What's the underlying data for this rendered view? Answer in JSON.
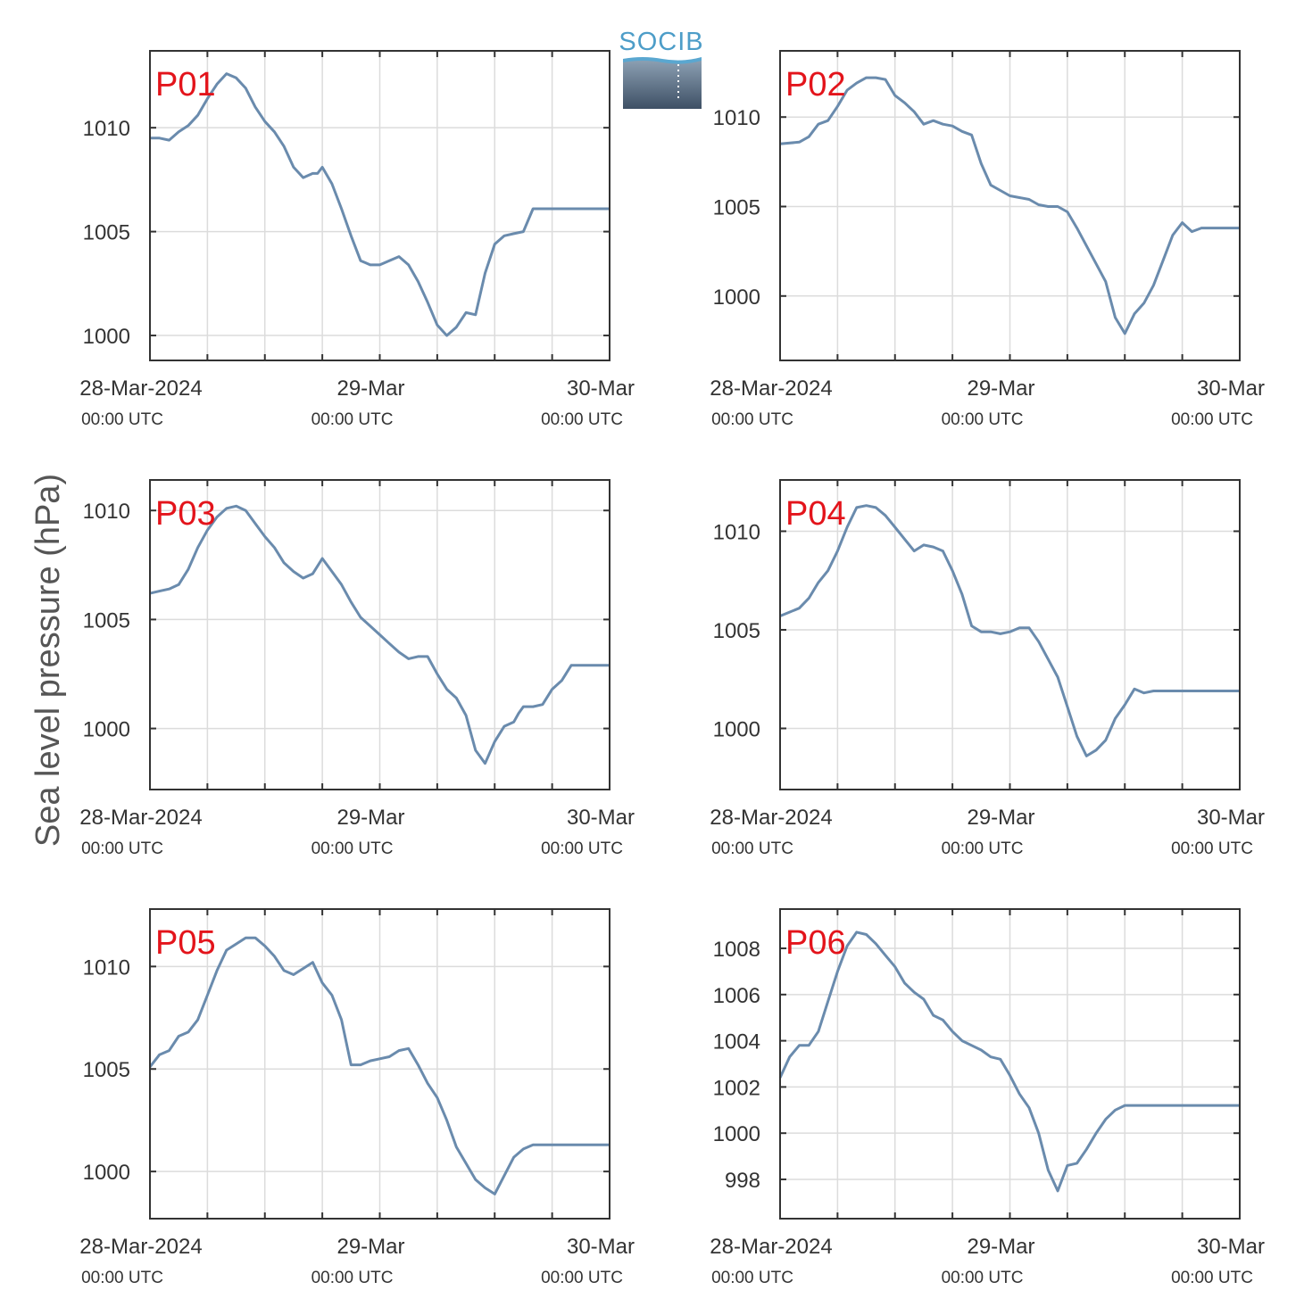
{
  "figure": {
    "ylabel": "Sea level pressure (hPa)",
    "logo_text": "SOCIB",
    "colors": {
      "line": "#6a8bad",
      "panel_label": "#e3141b",
      "grid": "#dcdcdc",
      "axis": "#333333"
    }
  },
  "chart_data": [
    {
      "type": "line",
      "label": "P01",
      "ylim": [
        998.8,
        1013.7
      ],
      "yticks": [
        1000,
        1005,
        1010
      ],
      "xlim": [
        0,
        48
      ],
      "xticks": [
        {
          "x": 0,
          "main": "28-Mar-2024",
          "sub": "00:00 UTC"
        },
        {
          "x": 24,
          "main": "29-Mar",
          "sub": "00:00 UTC"
        },
        {
          "x": 48,
          "main": "30-Mar",
          "sub": "00:00 UTC"
        }
      ],
      "grid": true,
      "x": [
        0,
        1,
        2,
        3,
        4,
        5,
        6,
        7,
        8,
        9,
        10,
        11,
        12,
        13,
        14,
        15,
        16,
        17,
        17.5,
        18,
        19,
        20,
        21,
        22,
        22.5,
        23,
        24,
        25,
        26,
        27,
        28,
        29,
        30,
        31,
        32,
        33,
        34,
        35,
        36,
        37,
        38,
        39,
        40,
        41,
        42,
        43,
        44,
        45,
        46,
        47,
        48
      ],
      "y": [
        1009.5,
        1009.5,
        1009.4,
        1009.8,
        1010.1,
        1010.6,
        1011.4,
        1012.1,
        1012.6,
        1012.4,
        1011.9,
        1011.0,
        1010.3,
        1009.8,
        1009.1,
        1008.1,
        1007.6,
        1007.8,
        1007.8,
        1008.1,
        1007.3,
        1006.1,
        1004.8,
        1003.6,
        1003.5,
        1003.4,
        1003.4,
        1003.6,
        1003.8,
        1003.4,
        1002.6,
        1001.6,
        1000.5,
        1000.0,
        1000.4,
        1001.1,
        1001.0,
        1003.0,
        1004.4,
        1004.8,
        1004.9,
        1005.0,
        1006.1,
        1006.1,
        1006.1,
        1006.1,
        1006.1,
        1006.1,
        1006.1,
        1006.1,
        1006.1
      ]
    },
    {
      "type": "line",
      "label": "P02",
      "ylim": [
        996.4,
        1013.7
      ],
      "yticks": [
        1000,
        1005,
        1010
      ],
      "xlim": [
        0,
        48
      ],
      "xticks": [
        {
          "x": 0,
          "main": "28-Mar-2024",
          "sub": "00:00 UTC"
        },
        {
          "x": 24,
          "main": "29-Mar",
          "sub": "00:00 UTC"
        },
        {
          "x": 48,
          "main": "30-Mar",
          "sub": "00:00 UTC"
        }
      ],
      "grid": true,
      "x": [
        0,
        2,
        3,
        4,
        5,
        6,
        7,
        8,
        9,
        10,
        11,
        12,
        13,
        14,
        15,
        16,
        17,
        18,
        19,
        20,
        21,
        22,
        23,
        24,
        25,
        26,
        27,
        28,
        29,
        30,
        31,
        32,
        33,
        34,
        35,
        36,
        37,
        38,
        39,
        40,
        41,
        42,
        43,
        44,
        45,
        46,
        47,
        48
      ],
      "y": [
        1008.5,
        1008.6,
        1008.9,
        1009.6,
        1009.8,
        1010.6,
        1011.5,
        1011.9,
        1012.2,
        1012.2,
        1012.1,
        1011.2,
        1010.8,
        1010.3,
        1009.6,
        1009.8,
        1009.6,
        1009.5,
        1009.2,
        1009.0,
        1007.4,
        1006.2,
        1005.9,
        1005.6,
        1005.5,
        1005.4,
        1005.1,
        1005.0,
        1005.0,
        1004.7,
        1003.8,
        1002.8,
        1001.8,
        1000.8,
        998.8,
        997.9,
        999.0,
        999.6,
        1000.6,
        1002.0,
        1003.4,
        1004.1,
        1003.6,
        1003.8,
        1003.8,
        1003.8,
        1003.8,
        1003.8
      ]
    },
    {
      "type": "line",
      "label": "P03",
      "ylim": [
        997.2,
        1011.4
      ],
      "yticks": [
        1000,
        1005,
        1010
      ],
      "xlim": [
        0,
        48
      ],
      "xticks": [
        {
          "x": 0,
          "main": "28-Mar-2024",
          "sub": "00:00 UTC"
        },
        {
          "x": 24,
          "main": "29-Mar",
          "sub": "00:00 UTC"
        },
        {
          "x": 48,
          "main": "30-Mar",
          "sub": "00:00 UTC"
        }
      ],
      "grid": true,
      "x": [
        0,
        1,
        2,
        3,
        4,
        5,
        6,
        7,
        8,
        9,
        10,
        11,
        12,
        13,
        14,
        15,
        16,
        17,
        18,
        19,
        20,
        21,
        22,
        23,
        24,
        25,
        26,
        27,
        28,
        29,
        30,
        31,
        32,
        33,
        34,
        35,
        36,
        37,
        38,
        38.5,
        39,
        40,
        41,
        42,
        43,
        44,
        45,
        46,
        47,
        48
      ],
      "y": [
        1006.2,
        1006.3,
        1006.4,
        1006.6,
        1007.3,
        1008.3,
        1009.1,
        1009.7,
        1010.1,
        1010.2,
        1010.0,
        1009.4,
        1008.8,
        1008.3,
        1007.6,
        1007.2,
        1006.9,
        1007.1,
        1007.8,
        1007.2,
        1006.6,
        1005.8,
        1005.1,
        1004.7,
        1004.3,
        1003.9,
        1003.5,
        1003.2,
        1003.3,
        1003.3,
        1002.5,
        1001.8,
        1001.4,
        1000.6,
        999.0,
        998.4,
        999.4,
        1000.1,
        1000.3,
        1000.7,
        1001.0,
        1001.0,
        1001.1,
        1001.8,
        1002.2,
        1002.9,
        1002.9,
        1002.9,
        1002.9,
        1002.9
      ]
    },
    {
      "type": "line",
      "label": "P04",
      "ylim": [
        996.9,
        1012.6
      ],
      "yticks": [
        1000,
        1005,
        1010
      ],
      "xlim": [
        0,
        48
      ],
      "xticks": [
        {
          "x": 0,
          "main": "28-Mar-2024",
          "sub": "00:00 UTC"
        },
        {
          "x": 24,
          "main": "29-Mar",
          "sub": "00:00 UTC"
        },
        {
          "x": 48,
          "main": "30-Mar",
          "sub": "00:00 UTC"
        }
      ],
      "grid": true,
      "x": [
        0,
        1,
        2,
        3,
        4,
        5,
        6,
        7,
        8,
        9,
        10,
        11,
        12,
        13,
        14,
        15,
        16,
        17,
        18,
        19,
        20,
        21,
        22,
        23,
        24,
        25,
        26,
        27,
        28,
        29,
        30,
        31,
        32,
        33,
        34,
        35,
        36,
        37,
        38,
        39,
        40,
        41,
        42,
        43,
        44,
        45,
        46,
        47,
        48
      ],
      "y": [
        1005.7,
        1005.9,
        1006.1,
        1006.6,
        1007.4,
        1008.0,
        1009.0,
        1010.2,
        1011.2,
        1011.3,
        1011.2,
        1010.8,
        1010.2,
        1009.6,
        1009.0,
        1009.3,
        1009.2,
        1009.0,
        1008.0,
        1006.8,
        1005.2,
        1004.9,
        1004.9,
        1004.8,
        1004.9,
        1005.1,
        1005.1,
        1004.4,
        1003.5,
        1002.6,
        1001.1,
        999.6,
        998.6,
        998.9,
        999.4,
        1000.5,
        1001.2,
        1002.0,
        1001.8,
        1001.9,
        1001.9,
        1001.9,
        1001.9,
        1001.9,
        1001.9,
        1001.9,
        1001.9,
        1001.9,
        1001.9
      ]
    },
    {
      "type": "line",
      "label": "P05",
      "ylim": [
        997.7,
        1012.8
      ],
      "yticks": [
        1000,
        1005,
        1010
      ],
      "xlim": [
        0,
        48
      ],
      "xticks": [
        {
          "x": 0,
          "main": "28-Mar-2024",
          "sub": "00:00 UTC"
        },
        {
          "x": 24,
          "main": "29-Mar",
          "sub": "00:00 UTC"
        },
        {
          "x": 48,
          "main": "30-Mar",
          "sub": "00:00 UTC"
        }
      ],
      "grid": true,
      "x": [
        0,
        1,
        2,
        3,
        4,
        5,
        6,
        7,
        8,
        9,
        10,
        11,
        12,
        13,
        14,
        15,
        16,
        17,
        18,
        19,
        20,
        21,
        22,
        23,
        24,
        25,
        26,
        27,
        28,
        29,
        30,
        31,
        32,
        33,
        34,
        35,
        36,
        37,
        38,
        39,
        40,
        41,
        42,
        43,
        44,
        44.5,
        45,
        46,
        47,
        48
      ],
      "y": [
        1005.1,
        1005.7,
        1005.9,
        1006.6,
        1006.8,
        1007.4,
        1008.6,
        1009.8,
        1010.8,
        1011.1,
        1011.4,
        1011.4,
        1011.0,
        1010.5,
        1009.8,
        1009.6,
        1009.9,
        1010.2,
        1009.2,
        1008.6,
        1007.4,
        1005.2,
        1005.2,
        1005.4,
        1005.5,
        1005.6,
        1005.9,
        1006.0,
        1005.2,
        1004.3,
        1003.6,
        1002.5,
        1001.2,
        1000.4,
        999.6,
        999.2,
        998.9,
        999.8,
        1000.7,
        1001.1,
        1001.3,
        1001.3,
        1001.3,
        1001.3,
        1001.3,
        1001.3,
        1001.3,
        1001.3,
        1001.3,
        1001.3
      ]
    },
    {
      "type": "line",
      "label": "P06",
      "ylim": [
        996.3,
        1009.7
      ],
      "yticks": [
        998,
        1000,
        1002,
        1004,
        1006,
        1008
      ],
      "xlim": [
        0,
        48
      ],
      "xticks": [
        {
          "x": 0,
          "main": "28-Mar-2024",
          "sub": "00:00 UTC"
        },
        {
          "x": 24,
          "main": "29-Mar",
          "sub": "00:00 UTC"
        },
        {
          "x": 48,
          "main": "30-Mar",
          "sub": "00:00 UTC"
        }
      ],
      "grid": true,
      "x": [
        0,
        1,
        2,
        3,
        4,
        5,
        6,
        7,
        8,
        9,
        10,
        11,
        12,
        13,
        14,
        15,
        16,
        17,
        18,
        19,
        20,
        21,
        22,
        23,
        24,
        25,
        26,
        27,
        28,
        29,
        30,
        31,
        32,
        33,
        34,
        35,
        36,
        37,
        38,
        39,
        40,
        41,
        42,
        43,
        44,
        45,
        46,
        47,
        48
      ],
      "y": [
        1002.4,
        1003.3,
        1003.8,
        1003.8,
        1004.4,
        1005.7,
        1007.0,
        1008.1,
        1008.7,
        1008.6,
        1008.2,
        1007.7,
        1007.2,
        1006.5,
        1006.1,
        1005.8,
        1005.1,
        1004.9,
        1004.4,
        1004.0,
        1003.8,
        1003.6,
        1003.3,
        1003.2,
        1002.5,
        1001.7,
        1001.1,
        1000.0,
        998.4,
        997.5,
        998.6,
        998.7,
        999.3,
        1000.0,
        1000.6,
        1001.0,
        1001.2,
        1001.2,
        1001.2,
        1001.2,
        1001.2,
        1001.2,
        1001.2,
        1001.2,
        1001.2,
        1001.2,
        1001.2,
        1001.2,
        1001.2
      ]
    }
  ]
}
